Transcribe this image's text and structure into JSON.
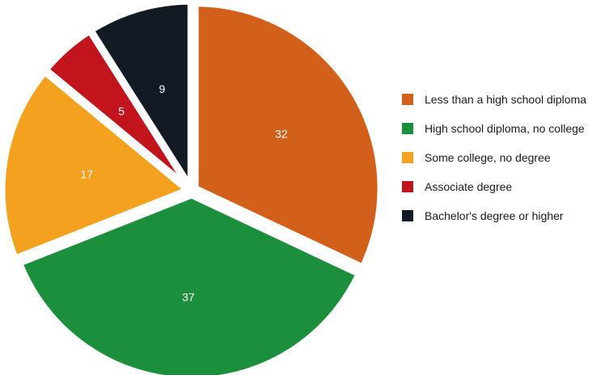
{
  "chart_data": {
    "type": "pie",
    "title": "",
    "legend_position": "right",
    "slices": [
      {
        "label": "Less than a high school diploma",
        "value": 32,
        "color": "#d2601a"
      },
      {
        "label": "High school diploma, no college",
        "value": 37,
        "color": "#1c8f3c"
      },
      {
        "label": "Some college, no degree",
        "value": 17,
        "color": "#f4a11f"
      },
      {
        "label": "Associate degree",
        "value": 5,
        "color": "#c2141c"
      },
      {
        "label": "Bachelor's degree or higher",
        "value": 9,
        "color": "#121b24"
      }
    ]
  }
}
